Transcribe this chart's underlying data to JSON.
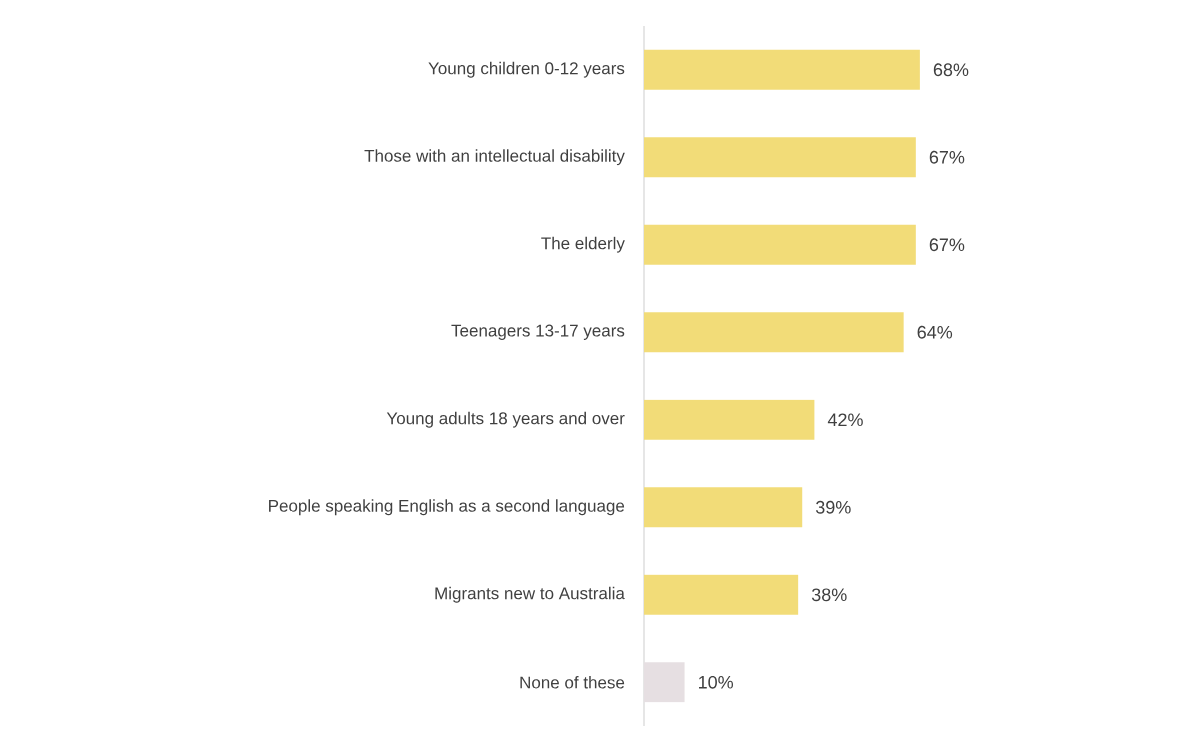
{
  "chart_data": {
    "type": "bar",
    "orientation": "horizontal",
    "categories": [
      "Young children 0-12 years",
      "Those with an intellectual disability",
      "The elderly",
      "Teenagers 13-17 years",
      "Young adults 18 years and over",
      "People speaking English as a second language",
      "Migrants new to Australia",
      "None of these"
    ],
    "values": [
      68,
      67,
      67,
      64,
      42,
      39,
      38,
      10
    ],
    "value_labels": [
      "68%",
      "67%",
      "67%",
      "64%",
      "42%",
      "39%",
      "38%",
      "10%"
    ],
    "colors": [
      "#f2dc78",
      "#f2dc78",
      "#f2dc78",
      "#f2dc78",
      "#f2dc78",
      "#f2dc78",
      "#f2dc78",
      "#e6dfe2"
    ]
  }
}
